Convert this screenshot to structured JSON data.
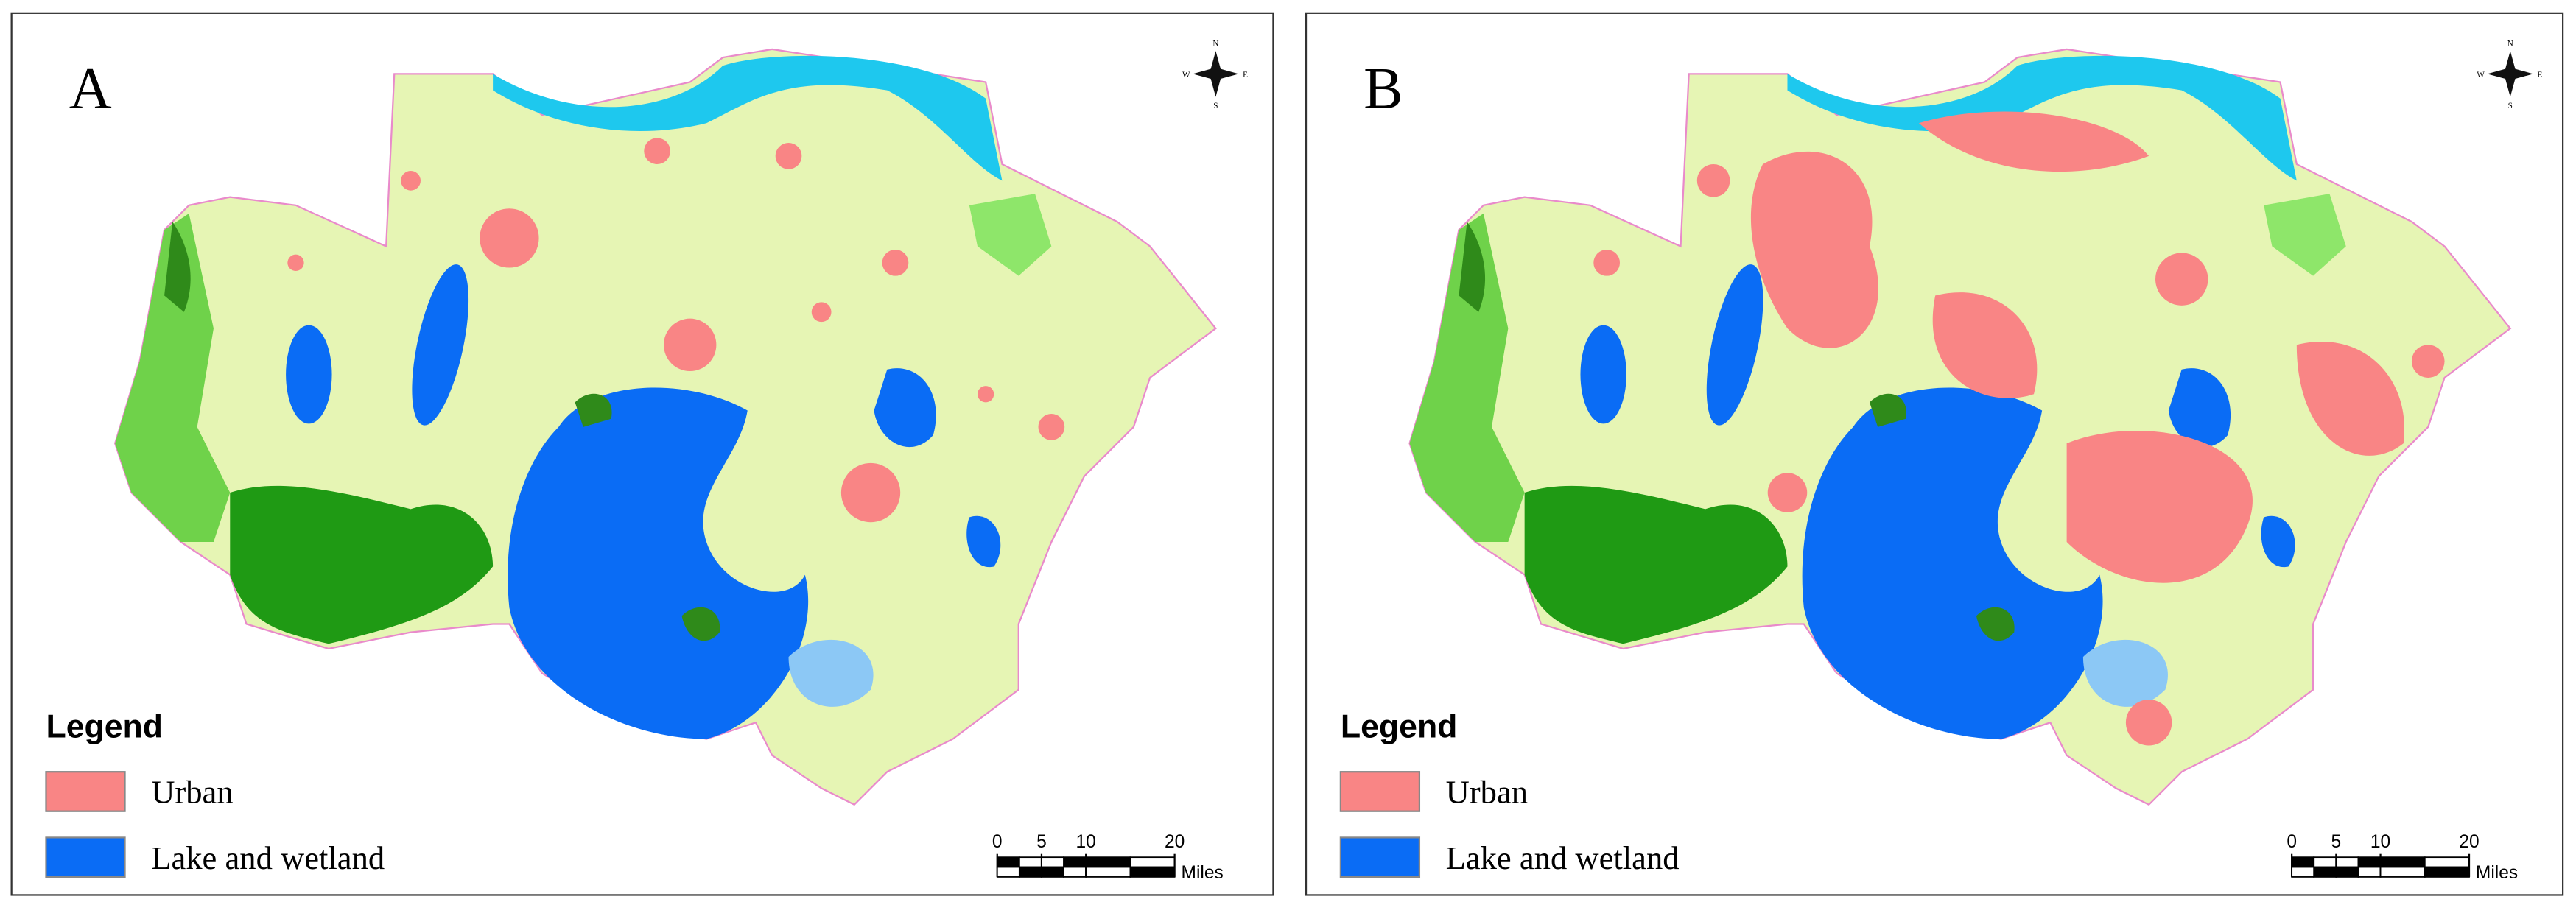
{
  "panels": [
    {
      "label": "A",
      "compass": [
        "N",
        "S",
        "E",
        "W"
      ],
      "legend": {
        "title": "Legend",
        "items": [
          "Urban",
          "Lake and wetland"
        ]
      },
      "scale": {
        "ticks": [
          0,
          5,
          10,
          20
        ],
        "unit": "Miles"
      }
    },
    {
      "label": "B",
      "compass": [
        "N",
        "S",
        "E",
        "W"
      ],
      "legend": {
        "title": "Legend",
        "items": [
          "Urban",
          "Lake and wetland"
        ]
      },
      "scale": {
        "ticks": [
          0,
          5,
          10,
          20
        ],
        "unit": "Miles"
      }
    }
  ]
}
